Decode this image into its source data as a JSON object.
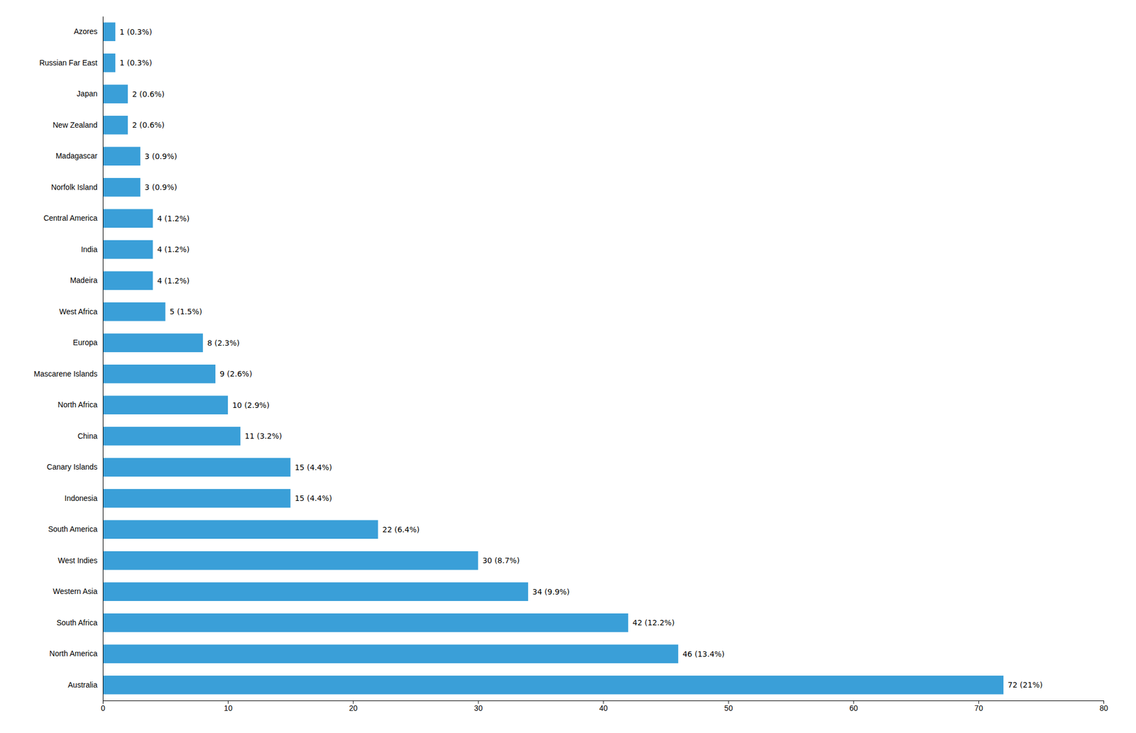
{
  "chart_data": {
    "type": "bar",
    "orientation": "horizontal",
    "categories": [
      "Azores",
      "Russian Far East",
      "Japan",
      "New Zealand",
      "Madagascar",
      "Norfolk Island",
      "Central America",
      "India",
      "Madeira",
      "West Africa",
      "Europa",
      "Mascarene Islands",
      "North Africa",
      "China",
      "Canary Islands",
      "Indonesia",
      "South America",
      "West Indies",
      "Western Asia",
      "South Africa",
      "North America",
      "Australia"
    ],
    "values": [
      1,
      1,
      2,
      2,
      3,
      3,
      4,
      4,
      4,
      5,
      8,
      9,
      10,
      11,
      15,
      15,
      22,
      30,
      34,
      42,
      46,
      72
    ],
    "value_labels": [
      "1 (0.3%)",
      "1 (0.3%)",
      "2 (0.6%)",
      "2 (0.6%)",
      "3 (0.9%)",
      "3 (0.9%)",
      "4 (1.2%)",
      "4 (1.2%)",
      "4 (1.2%)",
      "5 (1.5%)",
      "8 (2.3%)",
      "9 (2.6%)",
      "10 (2.9%)",
      "11 (3.2%)",
      "15 (4.4%)",
      "15 (4.4%)",
      "22 (6.4%)",
      "30 (8.7%)",
      "34 (9.9%)",
      "42 (12.2%)",
      "46 (13.4%)",
      "72 (21%)"
    ],
    "color": "#3a9fd8",
    "xlim": [
      0,
      80
    ],
    "xticks": [
      0,
      10,
      20,
      30,
      40,
      50,
      60,
      70,
      80
    ],
    "grid": false,
    "data_labels": true
  }
}
